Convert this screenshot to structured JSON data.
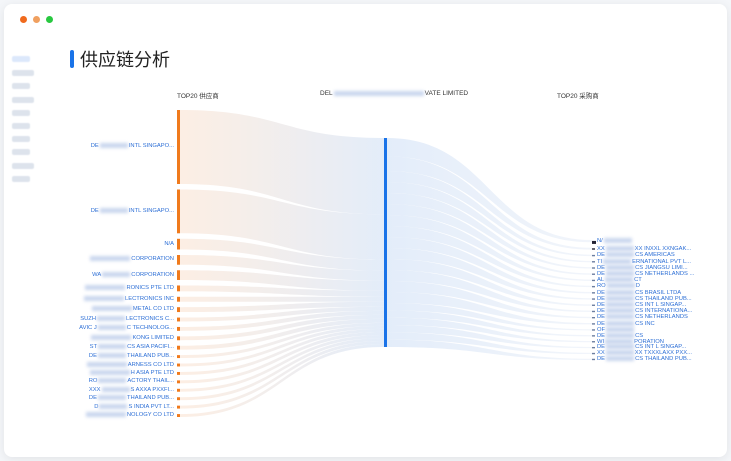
{
  "window": {
    "controls": [
      {
        "name": "close",
        "color": "#f06a1d"
      },
      {
        "name": "minimize",
        "color": "#f0a060"
      },
      {
        "name": "maximize",
        "color": "#28c840"
      }
    ]
  },
  "page": {
    "title": "供应链分析"
  },
  "columns": {
    "left": "TOP20 供应商",
    "middle_prefix": "DEL",
    "middle_suffix": "VATE LIMITED",
    "right": "TOP20 采购商"
  },
  "colors": {
    "supplier": "#f07a1c",
    "center": "#1a73e8",
    "label": "#2d6fd6"
  },
  "chart_data": {
    "type": "sankey",
    "suppliers": [
      {
        "pre": "DE",
        "post": "INTL SINGAPO...",
        "value": 76
      },
      {
        "pre": "DE",
        "post": "INTL SINGAPO...",
        "value": 45
      },
      {
        "pre": "",
        "post": "N/A",
        "value": 11
      },
      {
        "pre": "",
        "post": "CORPORATION",
        "value": 10
      },
      {
        "pre": "WA",
        "post": "CORPORATION",
        "value": 10
      },
      {
        "pre": "",
        "post": "RONICS PTE LTD",
        "value": 6
      },
      {
        "pre": "",
        "post": "LECTRONICS INC",
        "value": 5
      },
      {
        "pre": "",
        "post": "METAL CO LTD",
        "value": 5
      },
      {
        "pre": "SUZH",
        "post": "LECTRONICS C...",
        "value": 4
      },
      {
        "pre": "AVIC J",
        "post": "C TECHNOLOG...",
        "value": 4
      },
      {
        "pre": "",
        "post": "KONG LIMITED",
        "value": 4
      },
      {
        "pre": "ST",
        "post": "CS ASIA PACIFI...",
        "value": 4
      },
      {
        "pre": "DE",
        "post": "THAILAND PUB...",
        "value": 3
      },
      {
        "pre": "",
        "post": "ARNESS CO LTD",
        "value": 3
      },
      {
        "pre": "",
        "post": "H ASIA PTE LTD",
        "value": 3
      },
      {
        "pre": "RO",
        "post": "ACTORY THAIL...",
        "value": 3
      },
      {
        "pre": "XXX",
        "post": "S AXXA PXXFI...",
        "value": 3
      },
      {
        "pre": "DE",
        "post": "THAILAND PUB...",
        "value": 3
      },
      {
        "pre": "D",
        "post": "S INDIA PVT LT...",
        "value": 3
      },
      {
        "pre": "",
        "post": "NOLOGY CO LTD",
        "value": 3
      }
    ],
    "buyers": [
      {
        "pre": "N/",
        "post": "",
        "value": 5
      },
      {
        "pre": "XX",
        "post": "XX INXXL XXNGAK...",
        "value": 4
      },
      {
        "pre": "DE",
        "post": "CS AMERICAS",
        "value": 3
      },
      {
        "pre": "TI",
        "post": "ERNATIONAL PVT L...",
        "value": 3
      },
      {
        "pre": "DE",
        "post": "CS JIANGSU LIMI...",
        "value": 3
      },
      {
        "pre": "DE",
        "post": "CS NETHERLANDS ...",
        "value": 3
      },
      {
        "pre": "AL",
        "post": "CT",
        "value": 3
      },
      {
        "pre": "RO",
        "post": "D",
        "value": 3
      },
      {
        "pre": "DE",
        "post": "CS BRASIL LTDA",
        "value": 3
      },
      {
        "pre": "DE",
        "post": "CS THAILAND PUB...",
        "value": 3
      },
      {
        "pre": "DE",
        "post": "CS INT L SINGAP...",
        "value": 3
      },
      {
        "pre": "DE",
        "post": "CS INTERNATIONA...",
        "value": 3
      },
      {
        "pre": "DE",
        "post": "CS NETHERLANDS",
        "value": 3
      },
      {
        "pre": "DE",
        "post": "CS INC",
        "value": 3
      },
      {
        "pre": "OF",
        "post": "",
        "value": 2
      },
      {
        "pre": "DE",
        "post": "CS",
        "value": 2
      },
      {
        "pre": "WI",
        "post": "PORATION",
        "value": 2
      },
      {
        "pre": "DE",
        "post": "CS INT L SINGAP...",
        "value": 2
      },
      {
        "pre": "XX",
        "post": "XX TXXXLAXX PXX...",
        "value": 2
      },
      {
        "pre": "DE",
        "post": "CS THAILAND PUB...",
        "value": 2
      }
    ]
  }
}
